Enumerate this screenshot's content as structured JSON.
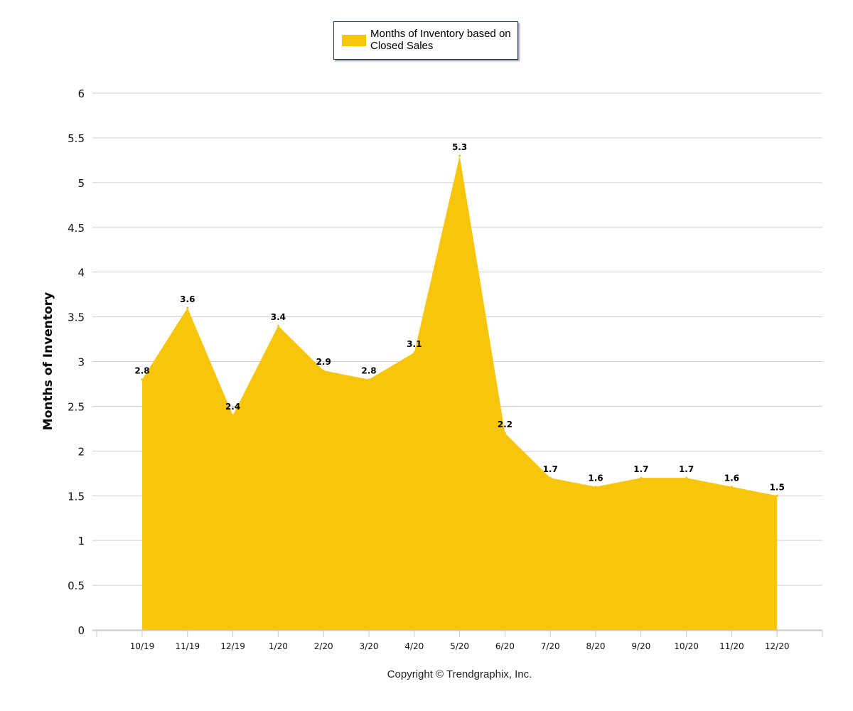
{
  "chart_data": {
    "type": "area",
    "title": "",
    "xlabel": "",
    "ylabel": "Months of Inventory",
    "ylim": [
      0,
      6
    ],
    "yticks": [
      "0",
      "0.5",
      "1",
      "1.5",
      "2",
      "2.5",
      "3",
      "3.5",
      "4",
      "4.5",
      "5",
      "5.5",
      "6"
    ],
    "grid": true,
    "legend_placement": "top-center",
    "categories": [
      "10/19",
      "11/19",
      "12/19",
      "1/20",
      "2/20",
      "3/20",
      "4/20",
      "5/20",
      "6/20",
      "7/20",
      "8/20",
      "9/20",
      "10/20",
      "11/20",
      "12/20"
    ],
    "series": [
      {
        "name": "Months of Inventory based on Closed Sales",
        "color": "#f7c50a",
        "values": [
          2.8,
          3.6,
          2.4,
          3.4,
          2.9,
          2.8,
          3.1,
          5.3,
          2.2,
          1.7,
          1.6,
          1.7,
          1.7,
          1.6,
          1.5
        ]
      }
    ]
  },
  "footer": {
    "copyright": "Copyright © Trendgraphix, Inc."
  }
}
